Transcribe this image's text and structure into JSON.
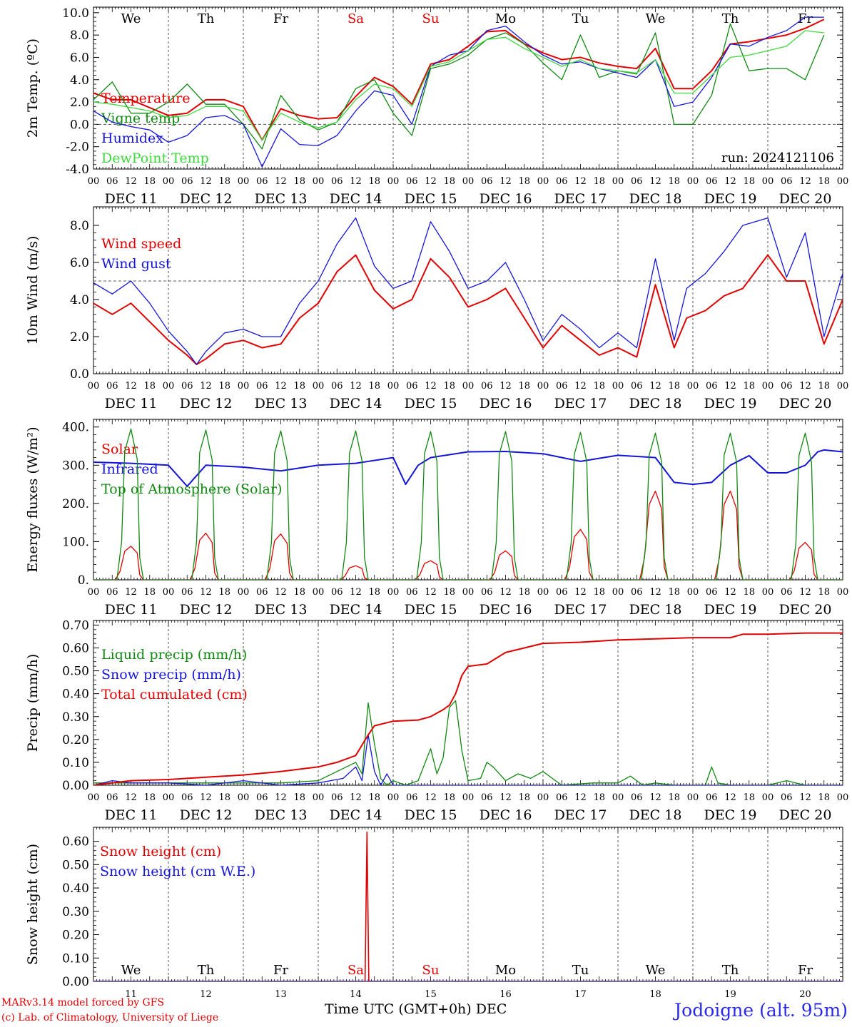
{
  "colors": {
    "red": "#e00000",
    "green": "#118811",
    "blue": "#1515d8",
    "lightgreen": "#3ed83e",
    "grid": "#555555"
  },
  "days": {
    "weekdays": [
      "We",
      "Th",
      "Fr",
      "Sa",
      "Su",
      "Mo",
      "Tu",
      "We",
      "Th",
      "Fr"
    ],
    "weekend_flags": [
      false,
      false,
      false,
      true,
      true,
      false,
      false,
      false,
      false,
      false
    ],
    "date_labels": [
      "DEC 11",
      "DEC 12",
      "DEC 13",
      "DEC 14",
      "DEC 15",
      "DEC 16",
      "DEC 17",
      "DEC 18",
      "DEC 19",
      "DEC 20"
    ],
    "hour_labels": [
      "00",
      "06",
      "12",
      "18"
    ],
    "end_hour": "00",
    "day_numbers": [
      "11",
      "12",
      "13",
      "14",
      "15",
      "16",
      "17",
      "18",
      "19",
      "20"
    ]
  },
  "footer": {
    "credit_line1": "MARv3.14 model forced by GFS",
    "credit_line2": "(c) Lab. of Climatology, University of Liege",
    "xaxis_title": "Time UTC (GMT+0h) DEC",
    "station": "Jodoigne (alt. 95m)"
  },
  "chart_data": [
    {
      "type": "line",
      "ylabel": "2m Temp. (ºC)",
      "ylim": [
        -4,
        10.5
      ],
      "yticks": [
        -4,
        -2,
        0,
        2,
        4,
        6,
        8,
        10
      ],
      "ytick_labels": [
        "-4.0",
        "-2.0",
        "0.0",
        "2.0",
        "4.0",
        "6.0",
        "8.0",
        "10.0"
      ],
      "ref_line": 0,
      "annotation": "run: 2024121106",
      "x_unit": "hours since DEC 11 00 UTC",
      "series": [
        {
          "name": "Temperature",
          "color": "red",
          "width": 2,
          "x": [
            0,
            6,
            12,
            18,
            24,
            30,
            36,
            42,
            48,
            54,
            60,
            66,
            72,
            78,
            84,
            90,
            96,
            102,
            108,
            114,
            120,
            126,
            132,
            138,
            144,
            150,
            156,
            162,
            168,
            174,
            180,
            186,
            192,
            198,
            204,
            210,
            216,
            222,
            228,
            234
          ],
          "y": [
            2.8,
            2.2,
            2.2,
            1.5,
            0.8,
            1.0,
            2.2,
            2.2,
            1.6,
            -1.4,
            1.4,
            0.8,
            0.5,
            0.6,
            2.5,
            4.2,
            3.4,
            1.8,
            5.4,
            5.8,
            7.0,
            8.3,
            8.4,
            7.2,
            6.4,
            5.8,
            6.0,
            5.5,
            5.2,
            5.0,
            6.8,
            3.2,
            3.2,
            4.8,
            7.2,
            7.4,
            7.7,
            8.0,
            8.6,
            9.4
          ]
        },
        {
          "name": "Vigne temp",
          "color": "green",
          "width": 1.3,
          "x": [
            0,
            6,
            12,
            18,
            24,
            30,
            36,
            42,
            48,
            54,
            60,
            66,
            72,
            78,
            84,
            90,
            96,
            102,
            108,
            114,
            120,
            126,
            132,
            138,
            144,
            150,
            156,
            162,
            168,
            174,
            180,
            186,
            192,
            198,
            204,
            210,
            216,
            222,
            228,
            234
          ],
          "y": [
            2.2,
            3.8,
            1.0,
            1.0,
            2.0,
            3.6,
            1.8,
            1.8,
            0.0,
            -2.2,
            2.6,
            0.4,
            -0.5,
            0.2,
            3.2,
            4.0,
            1.0,
            -1.0,
            5.0,
            5.4,
            6.2,
            7.6,
            8.2,
            7.2,
            5.5,
            4.0,
            8.0,
            4.2,
            4.8,
            4.5,
            8.2,
            0.0,
            0.0,
            2.6,
            9.0,
            4.8,
            5.0,
            5.0,
            4.0,
            8.0
          ]
        },
        {
          "name": "Humidex",
          "color": "blue",
          "width": 1.3,
          "x": [
            0,
            6,
            12,
            18,
            24,
            30,
            36,
            42,
            48,
            54,
            60,
            66,
            72,
            78,
            84,
            90,
            96,
            102,
            108,
            114,
            120,
            126,
            132,
            138,
            144,
            150,
            156,
            162,
            168,
            174,
            180,
            186,
            192,
            198,
            204,
            210,
            216,
            222,
            228,
            234
          ],
          "y": [
            1.2,
            0.2,
            -0.2,
            -0.5,
            -1.6,
            -1.0,
            0.6,
            0.8,
            0.0,
            -3.8,
            -0.4,
            -1.8,
            -1.9,
            -1.0,
            1.2,
            3.0,
            2.6,
            0.0,
            5.2,
            6.2,
            6.6,
            8.4,
            8.8,
            7.4,
            6.2,
            5.4,
            5.6,
            5.0,
            4.6,
            4.2,
            5.8,
            1.6,
            2.0,
            4.2,
            7.2,
            7.0,
            7.8,
            8.4,
            9.6,
            9.6
          ]
        },
        {
          "name": "DewPoint Temp",
          "color": "lightgreen",
          "width": 1.3,
          "x": [
            0,
            6,
            12,
            18,
            24,
            30,
            36,
            42,
            48,
            54,
            60,
            66,
            72,
            78,
            84,
            90,
            96,
            102,
            108,
            114,
            120,
            126,
            132,
            138,
            144,
            150,
            156,
            162,
            168,
            174,
            180,
            186,
            192,
            198,
            204,
            210,
            216,
            222,
            228,
            234
          ],
          "y": [
            2.0,
            1.8,
            1.5,
            1.2,
            0.6,
            0.8,
            1.6,
            1.6,
            1.2,
            -1.4,
            1.0,
            0.2,
            -0.3,
            0.2,
            2.2,
            3.6,
            3.2,
            1.6,
            5.2,
            5.6,
            6.6,
            7.6,
            7.8,
            6.8,
            6.0,
            5.2,
            5.8,
            5.0,
            4.8,
            4.6,
            5.8,
            2.8,
            2.8,
            4.4,
            6.0,
            6.2,
            6.6,
            7.0,
            8.4,
            8.2
          ]
        }
      ]
    },
    {
      "type": "line",
      "ylabel": "10m Wind (m/s)",
      "ylim": [
        0,
        9
      ],
      "yticks": [
        0,
        2,
        4,
        6,
        8
      ],
      "ytick_labels": [
        "0.0",
        "2.0",
        "4.0",
        "6.0",
        "8.0"
      ],
      "ref_line": 5,
      "x_unit": "hours since DEC 11 00 UTC",
      "series": [
        {
          "name": "Wind speed",
          "color": "red",
          "width": 2,
          "x": [
            0,
            6,
            12,
            18,
            24,
            30,
            33,
            36,
            42,
            48,
            54,
            60,
            66,
            72,
            78,
            84,
            90,
            96,
            102,
            108,
            114,
            120,
            126,
            132,
            138,
            144,
            150,
            156,
            162,
            168,
            174,
            180,
            186,
            190,
            196,
            202,
            208,
            216,
            222,
            228,
            234,
            240
          ],
          "y": [
            3.8,
            3.2,
            3.8,
            2.8,
            1.8,
            1.0,
            0.5,
            0.8,
            1.6,
            1.8,
            1.4,
            1.6,
            3.0,
            3.8,
            5.5,
            6.4,
            4.5,
            3.5,
            4.0,
            6.2,
            5.2,
            3.6,
            4.0,
            4.6,
            3.0,
            1.4,
            2.6,
            1.8,
            1.0,
            1.4,
            0.9,
            4.8,
            1.4,
            3.0,
            3.4,
            4.2,
            4.6,
            6.4,
            5.0,
            5.0,
            1.6,
            4.0
          ]
        },
        {
          "name": "Wind gust",
          "color": "blue",
          "width": 1.3,
          "x": [
            0,
            6,
            12,
            18,
            24,
            30,
            33,
            36,
            42,
            48,
            54,
            60,
            66,
            72,
            78,
            84,
            90,
            96,
            102,
            108,
            114,
            120,
            126,
            132,
            138,
            144,
            150,
            156,
            162,
            168,
            174,
            180,
            186,
            190,
            196,
            202,
            208,
            216,
            222,
            228,
            234,
            240
          ],
          "y": [
            4.9,
            4.3,
            5.0,
            3.8,
            2.3,
            1.2,
            0.5,
            1.2,
            2.2,
            2.4,
            2.0,
            2.0,
            3.8,
            5.0,
            7.0,
            8.4,
            5.8,
            4.6,
            5.0,
            8.2,
            6.6,
            4.6,
            5.0,
            6.0,
            4.0,
            1.8,
            3.2,
            2.4,
            1.4,
            2.2,
            1.4,
            6.2,
            1.8,
            4.6,
            5.4,
            6.6,
            8.0,
            8.4,
            5.2,
            7.6,
            2.0,
            5.4
          ]
        }
      ]
    },
    {
      "type": "line",
      "ylabel": "Energy fluxes (W/m²)",
      "ylim": [
        0,
        420
      ],
      "yticks": [
        0,
        100,
        200,
        300,
        400
      ],
      "ytick_labels": [
        "0.",
        "100.",
        "200.",
        "300.",
        "400."
      ],
      "x_unit": "hours since DEC 11 00 UTC",
      "series": [
        {
          "name": "Solar",
          "color": "red",
          "width": 1.3,
          "daily_peak": [
            88,
            122,
            120,
            37,
            50,
            76,
            132,
            232,
            232,
            98
          ],
          "peak_hour": 12,
          "start_hour": 7,
          "end_hour": 16
        },
        {
          "name": "Infrared",
          "color": "blue",
          "width": 2,
          "x": [
            0,
            12,
            24,
            30,
            36,
            48,
            60,
            72,
            84,
            96,
            100,
            104,
            108,
            112,
            120,
            132,
            144,
            156,
            168,
            180,
            186,
            192,
            198,
            204,
            210,
            216,
            222,
            228,
            232,
            234,
            240
          ],
          "y": [
            308,
            305,
            300,
            245,
            300,
            295,
            285,
            300,
            305,
            320,
            250,
            300,
            320,
            325,
            335,
            336,
            330,
            310,
            326,
            320,
            255,
            250,
            255,
            300,
            325,
            280,
            280,
            300,
            335,
            340,
            335
          ]
        },
        {
          "name": "Top of Atmosphere (Solar)",
          "color": "green",
          "width": 1.3,
          "daily_peak": [
            395,
            392,
            390,
            390,
            388,
            388,
            386,
            384,
            384,
            384
          ],
          "peak_hour": 12,
          "start_hour": 7.5,
          "end_hour": 16
        }
      ]
    },
    {
      "type": "line",
      "ylabel": "Precip (mm/h)",
      "ylim": [
        0,
        0.72
      ],
      "yticks": [
        0,
        0.1,
        0.2,
        0.3,
        0.4,
        0.5,
        0.6,
        0.7
      ],
      "ytick_labels": [
        "0.00",
        "0.10",
        "0.20",
        "0.30",
        "0.40",
        "0.50",
        "0.60",
        "0.70"
      ],
      "x_unit": "hours since DEC 11 00 UTC",
      "series": [
        {
          "name": "Liquid precip (mm/h)",
          "color": "green",
          "width": 1.3,
          "x": [
            0,
            12,
            24,
            36,
            48,
            60,
            72,
            84,
            86,
            88,
            90,
            92,
            94,
            96,
            100,
            104,
            108,
            110,
            112,
            114,
            116,
            118,
            120,
            124,
            126,
            128,
            132,
            136,
            140,
            144,
            150,
            160,
            168,
            172,
            176,
            180,
            186,
            196,
            198,
            200,
            204,
            210,
            216,
            222,
            228,
            234,
            240
          ],
          "y": [
            0.01,
            0.01,
            0.01,
            0.01,
            0.01,
            0.01,
            0.02,
            0.1,
            0.05,
            0.36,
            0.18,
            0.03,
            0.0,
            0.02,
            0.0,
            0.02,
            0.16,
            0.05,
            0.12,
            0.34,
            0.37,
            0.15,
            0.02,
            0.03,
            0.1,
            0.08,
            0.02,
            0.05,
            0.03,
            0.06,
            0.0,
            0.01,
            0.01,
            0.04,
            0.0,
            0.01,
            0.0,
            0.0,
            0.08,
            0.01,
            0.0,
            0.0,
            0.0,
            0.02,
            0.0,
            0.0,
            0.0
          ]
        },
        {
          "name": "Snow precip (mm/h)",
          "color": "blue",
          "width": 1.3,
          "x": [
            0,
            6,
            12,
            24,
            36,
            48,
            60,
            72,
            80,
            84,
            86,
            88,
            90,
            92,
            94,
            96,
            100,
            110,
            120,
            150,
            180,
            210,
            240
          ],
          "y": [
            0.0,
            0.02,
            0.01,
            0.01,
            0.0,
            0.02,
            0.0,
            0.01,
            0.03,
            0.08,
            0.02,
            0.22,
            0.06,
            0.0,
            0.05,
            0.0,
            0.0,
            0.0,
            0.0,
            0.0,
            0.0,
            0.0,
            0.0
          ]
        },
        {
          "name": "Total cumulated (cm)",
          "color": "red",
          "width": 2,
          "x": [
            0,
            12,
            24,
            36,
            48,
            60,
            72,
            78,
            84,
            88,
            90,
            96,
            104,
            108,
            112,
            114,
            116,
            118,
            120,
            126,
            132,
            138,
            144,
            156,
            168,
            180,
            192,
            204,
            208,
            216,
            228,
            240
          ],
          "y": [
            0.0,
            0.02,
            0.025,
            0.035,
            0.045,
            0.06,
            0.08,
            0.1,
            0.13,
            0.22,
            0.26,
            0.28,
            0.285,
            0.3,
            0.33,
            0.35,
            0.4,
            0.48,
            0.52,
            0.53,
            0.58,
            0.6,
            0.62,
            0.625,
            0.635,
            0.64,
            0.645,
            0.645,
            0.66,
            0.66,
            0.665,
            0.665
          ]
        }
      ]
    },
    {
      "type": "line",
      "ylabel": "Snow height (cm)",
      "ylim": [
        0,
        0.66
      ],
      "yticks": [
        0,
        0.1,
        0.2,
        0.3,
        0.4,
        0.5,
        0.6
      ],
      "ytick_labels": [
        "0.00",
        "0.10",
        "0.20",
        "0.30",
        "0.40",
        "0.50",
        "0.60"
      ],
      "x_unit": "hours since DEC 11 00 UTC",
      "series": [
        {
          "name": "Snow height (cm)",
          "color": "red",
          "width": 1.6,
          "x": [
            0,
            86,
            87,
            87.6,
            88.2,
            89,
            240
          ],
          "y": [
            0,
            0,
            0,
            0.64,
            0,
            0,
            0
          ]
        },
        {
          "name": "Snow height (cm W.E.)",
          "color": "blue",
          "width": 1.3,
          "x": [
            0,
            240
          ],
          "y": [
            0,
            0
          ]
        }
      ]
    }
  ]
}
